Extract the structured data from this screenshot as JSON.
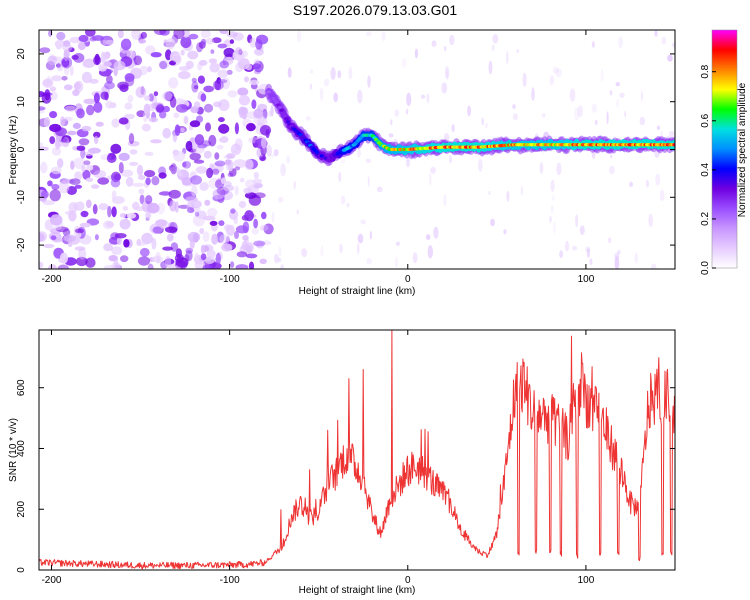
{
  "title": "S197.2026.079.13.03.G01",
  "colors": {
    "snr_line": "#ee3333",
    "colorscale": [
      "#ffffff",
      "#e6ccff",
      "#c896ff",
      "#9a4dff",
      "#6f00e0",
      "#0000ff",
      "#0090ff",
      "#00e0e0",
      "#00ff00",
      "#ffff00",
      "#ff8000",
      "#ff0000",
      "#ff00ff"
    ]
  },
  "chart_data": [
    {
      "type": "heatmap",
      "xlabel": "Height of straight line (km)",
      "ylabel": "Frequency (Hz)",
      "xlim": [
        -207,
        150
      ],
      "ylim": [
        -25,
        25
      ],
      "xticks": [
        -200,
        -100,
        0,
        100
      ],
      "xtick_labels": [
        "-200",
        "-100",
        "0",
        "100"
      ],
      "yticks": [
        -20,
        -10,
        0,
        10,
        20
      ],
      "ytick_labels": [
        "-20",
        "-10",
        "0",
        "10",
        "20"
      ],
      "colorbar": {
        "label": "Normalized spectral amplitude",
        "range": [
          0,
          0.97
        ],
        "ticks": [
          0.0,
          0.2,
          0.4,
          0.6,
          0.8
        ],
        "tick_labels": [
          "0.0",
          "0.2",
          "0.4",
          "0.6",
          "0.8"
        ]
      },
      "noise_region_km": [
        -207,
        -78
      ],
      "ridge": {
        "x": [
          -78,
          -72,
          -66,
          -60,
          -55,
          -50,
          -45,
          -40,
          -35,
          -30,
          -25,
          -20,
          -15,
          -10,
          0,
          20,
          40,
          60,
          80,
          100,
          120,
          140,
          150
        ],
        "freq": [
          12,
          9,
          5,
          3,
          1,
          -1,
          -2,
          -1,
          0,
          1,
          3,
          3,
          1,
          0,
          0,
          0.5,
          0.5,
          1,
          1,
          1,
          1,
          1,
          1
        ],
        "amp": [
          0.25,
          0.3,
          0.35,
          0.4,
          0.45,
          0.4,
          0.35,
          0.4,
          0.55,
          0.5,
          0.6,
          0.6,
          0.7,
          0.75,
          0.8,
          0.85,
          0.85,
          0.8,
          0.8,
          0.85,
          0.85,
          0.85,
          0.85
        ]
      }
    },
    {
      "type": "line",
      "xlabel": "Height of straight line (km)",
      "ylabel": "SNR (10 * v/v)",
      "xlim": [
        -207,
        150
      ],
      "ylim": [
        0,
        790
      ],
      "xticks": [
        -200,
        -100,
        0,
        100
      ],
      "xtick_labels": [
        "-200",
        "-100",
        "0",
        "100"
      ],
      "yticks": [
        0,
        200,
        400,
        600
      ],
      "ytick_labels": [
        "0",
        "200",
        "400",
        "600"
      ],
      "series": [
        {
          "name": "SNR",
          "x": [
            -207,
            -180,
            -150,
            -120,
            -90,
            -80,
            -70,
            -65,
            -60,
            -55,
            -50,
            -45,
            -40,
            -35,
            -30,
            -25,
            -20,
            -15,
            -10,
            -5,
            0,
            5,
            10,
            15,
            20,
            25,
            30,
            35,
            40,
            45,
            50,
            55,
            60,
            65,
            70,
            75,
            80,
            85,
            90,
            95,
            100,
            105,
            110,
            115,
            120,
            125,
            130,
            135,
            140,
            145,
            150
          ],
          "values": [
            25,
            20,
            15,
            15,
            18,
            25,
            80,
            180,
            220,
            170,
            190,
            280,
            320,
            380,
            350,
            300,
            180,
            120,
            230,
            280,
            330,
            340,
            320,
            280,
            250,
            200,
            130,
            90,
            60,
            50,
            120,
            330,
            580,
            620,
            520,
            510,
            500,
            470,
            430,
            600,
            570,
            520,
            480,
            400,
            330,
            220,
            200,
            540,
            580,
            560,
            520
          ]
        }
      ],
      "spikes": [
        {
          "x": -55,
          "value": 330
        },
        {
          "x": -45,
          "value": 460
        },
        {
          "x": -33,
          "value": 630
        },
        {
          "x": -25,
          "value": 660
        },
        {
          "x": -9,
          "value": 790
        },
        {
          "x": 92,
          "value": 770
        },
        {
          "x": 98,
          "value": 680
        }
      ],
      "dips": [
        {
          "x": 62,
          "value": 45
        },
        {
          "x": 72,
          "value": 55
        },
        {
          "x": 80,
          "value": 50
        },
        {
          "x": 86,
          "value": 40
        },
        {
          "x": 95,
          "value": 35
        },
        {
          "x": 108,
          "value": 40
        },
        {
          "x": 118,
          "value": 45
        },
        {
          "x": 130,
          "value": 30
        },
        {
          "x": 143,
          "value": 40
        },
        {
          "x": 148,
          "value": 50
        }
      ]
    }
  ]
}
